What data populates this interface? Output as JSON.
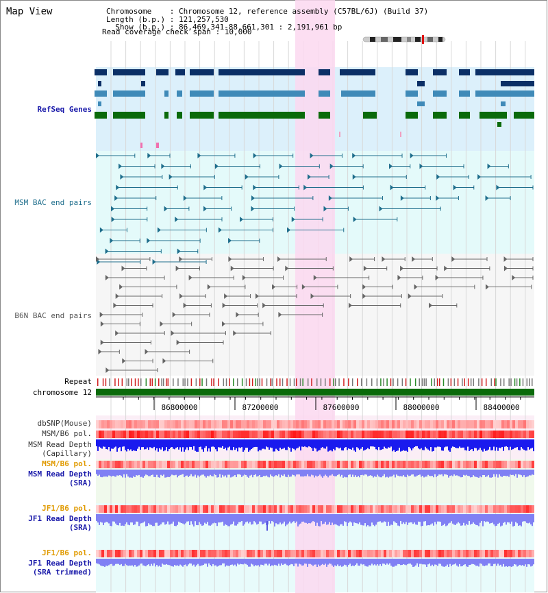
{
  "header": {
    "view_title": "Map View",
    "chromosome_line": "Chromosome    : Chromosome 12, reference assembly (C57BL/6J) (Build 37)",
    "length_line": "Length (b.p.) : 121,257,530",
    "show_line": "  Show (b.p.) : 86,469,341-88,661,301 : 2,191,961 bp",
    "coverage_line": "Read coverage check span : 10,000"
  },
  "tracks": {
    "refseq": "RefSeq Genes",
    "msm_bac": "MSM BAC end pairs",
    "b6n_bac": "B6N BAC end pairs",
    "repeat": "Repeat",
    "chromosome": "chromosome 12",
    "dbsnp": "dbSNP(Mouse)",
    "msm_b6_pol_1": "MSM/B6 pol.",
    "msm_depth_cap_1": "MSM Read Depth",
    "msm_depth_cap_2": "(Capillary)",
    "msm_b6_pol_2": "MSM/B6 pol.",
    "msm_depth_sra_1": "MSM Read Depth",
    "msm_depth_sra_2": "(SRA)",
    "jf1_pol_1": "JF1/B6 pol.",
    "jf1_depth_sra_1": "JF1 Read Depth",
    "jf1_depth_sra_2": "(SRA)",
    "jf1_pol_2": "JF1/B6 pol.",
    "jf1_depth_trim_1": "JF1 Read Depth",
    "jf1_depth_trim_2": "(SRA trimmed)"
  },
  "axis": {
    "ticks": [
      "86800000",
      "87200000",
      "87600000",
      "88000000",
      "88400000"
    ]
  },
  "colors": {
    "refseq_dark": "#0b2f66",
    "refseq_mid": "#3f8ab8",
    "refseq_green": "#0a6a0a",
    "refseq_bg": "#dcf0fb",
    "msm_bg": "#e4fafa",
    "msm_line": "#1f6e8c",
    "b6n_line": "#666666",
    "highlight": "#fcd8f0",
    "chromosome_bar": "#0a6a0a",
    "snp": "#f07070",
    "depth_capillary": "#1a1aee",
    "depth_sra": "#8080f4",
    "label_blue": "#1a1aaa",
    "label_orange": "#e09a00"
  }
}
